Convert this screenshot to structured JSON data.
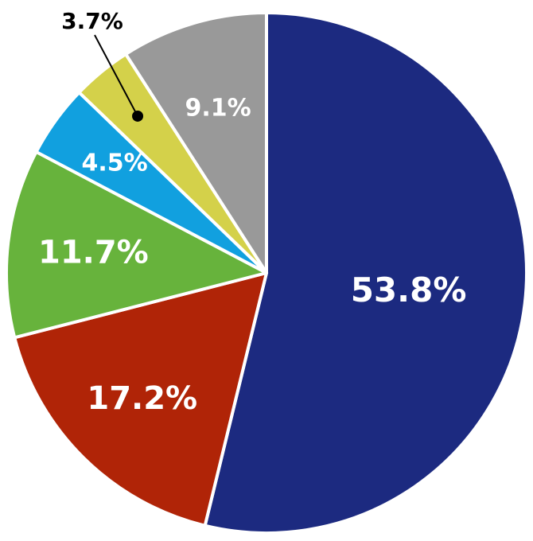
{
  "chart_data": {
    "type": "pie",
    "title": "",
    "slices": [
      {
        "label": "53.8%",
        "value": 53.8,
        "color": "#1c2a80"
      },
      {
        "label": "17.2%",
        "value": 17.2,
        "color": "#b02407"
      },
      {
        "label": "11.7%",
        "value": 11.7,
        "color": "#67b33c"
      },
      {
        "label": "4.5%",
        "value": 4.5,
        "color": "#11a0df"
      },
      {
        "label": "3.7%",
        "value": 3.7,
        "color": "#d4d14a"
      },
      {
        "label": "9.1%",
        "value": 9.1,
        "color": "#999999"
      }
    ],
    "start": "12 o'clock",
    "direction": "clockwise",
    "legend": "none"
  }
}
